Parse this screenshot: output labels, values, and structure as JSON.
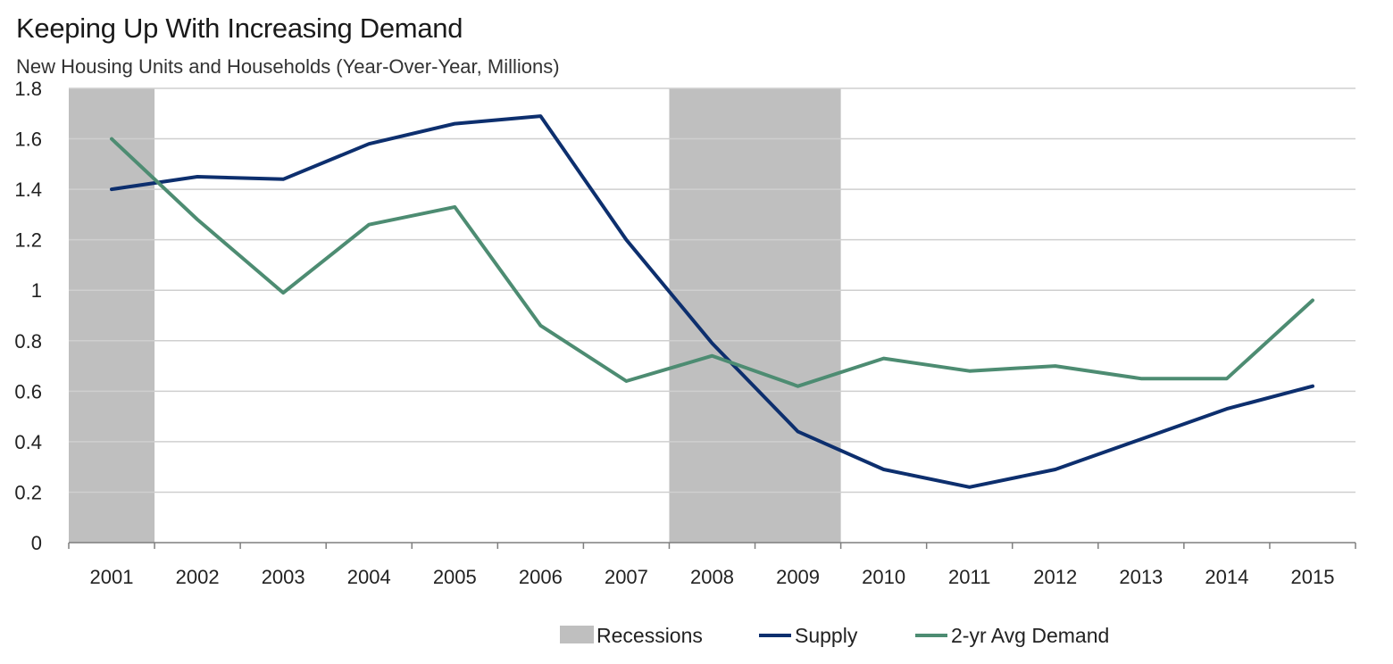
{
  "chart_data": {
    "type": "line",
    "title": "Keeping Up With Increasing Demand",
    "subtitle": "New Housing Units and Households (Year-Over-Year, Millions)",
    "categories": [
      "2001",
      "2002",
      "2003",
      "2004",
      "2005",
      "2006",
      "2007",
      "2008",
      "2009",
      "2010",
      "2011",
      "2012",
      "2013",
      "2014",
      "2015"
    ],
    "ylim": [
      0,
      1.8
    ],
    "yticks": [
      "0",
      "0.2",
      "0.4",
      "0.6",
      "0.8",
      "1",
      "1.2",
      "1.4",
      "1.6",
      "1.8"
    ],
    "ytick_values": [
      0,
      0.2,
      0.4,
      0.6,
      0.8,
      1.0,
      1.2,
      1.4,
      1.6,
      1.8
    ],
    "grid": true,
    "legend_position": "bottom-center",
    "recessions": [
      {
        "start": "2001",
        "end": "2001"
      },
      {
        "start": "2008",
        "end": "2009"
      }
    ],
    "recession_label": "Recessions",
    "recession_color": "#bfbfbf",
    "series": [
      {
        "name": "Supply",
        "color": "#0d2f6e",
        "values": [
          1.4,
          1.45,
          1.44,
          1.58,
          1.66,
          1.69,
          1.2,
          0.79,
          0.44,
          0.29,
          0.22,
          0.29,
          0.41,
          0.53,
          0.62
        ]
      },
      {
        "name": "2-yr Avg Demand",
        "color": "#4d8c72",
        "values": [
          1.6,
          1.28,
          0.99,
          1.26,
          1.33,
          0.86,
          0.64,
          0.74,
          0.62,
          0.73,
          0.68,
          0.7,
          0.65,
          0.65,
          0.96
        ]
      }
    ]
  }
}
